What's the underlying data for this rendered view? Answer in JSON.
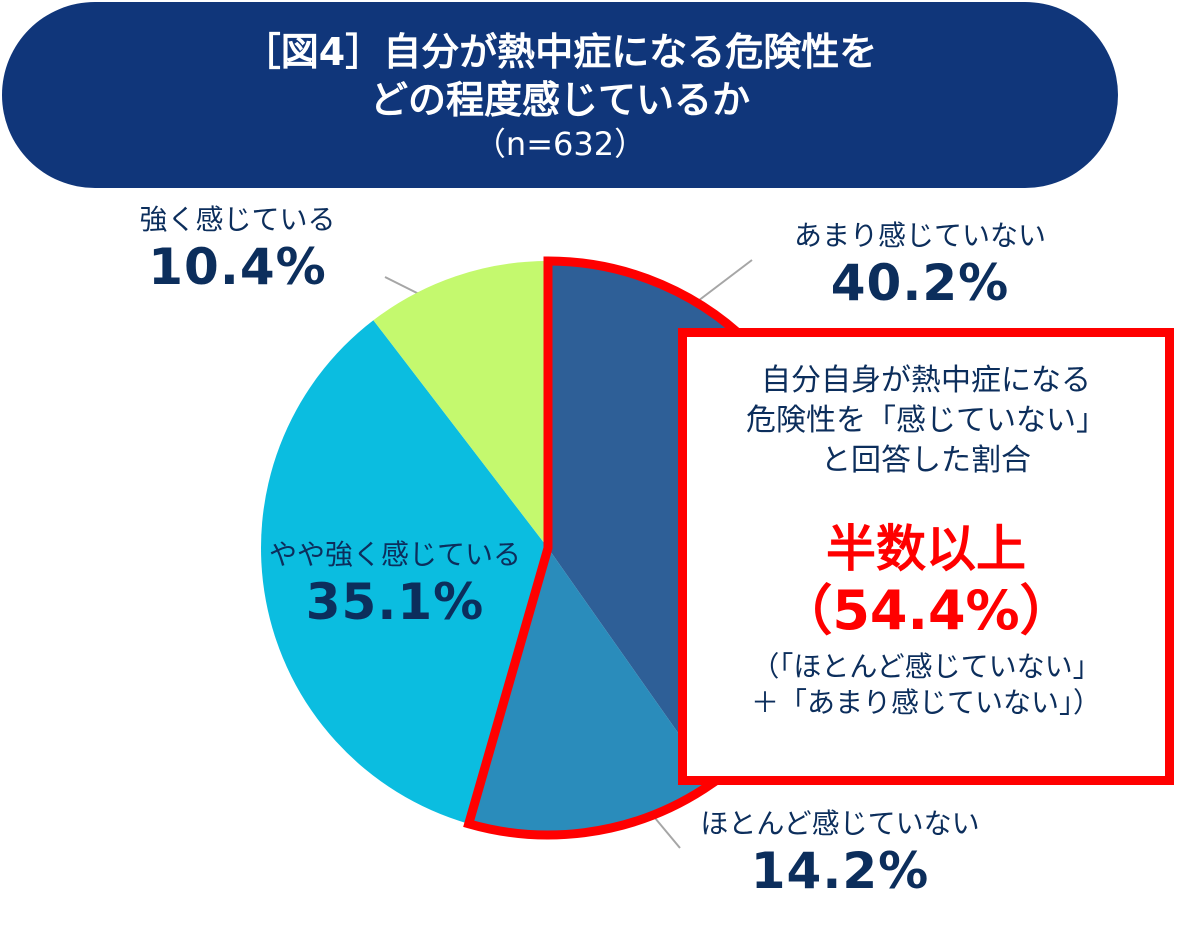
{
  "title": {
    "line1": "［図4］自分が熱中症になる危険性を",
    "line2": "どの程度感じているか",
    "line3": "（n=632）"
  },
  "chart_data": {
    "type": "pie",
    "slices": [
      {
        "label": "あまり感じていない",
        "value": 40.2,
        "value_label": "40.2%",
        "color": "#2e5f97"
      },
      {
        "label": "ほとんど感じていない",
        "value": 14.2,
        "value_label": "14.2%",
        "color": "#2a8cbb"
      },
      {
        "label": "やや強く感じている",
        "value": 35.1,
        "value_label": "35.1%",
        "color": "#0bbde0"
      },
      {
        "label": "強く感じている",
        "value": 10.4,
        "value_label": "10.4%",
        "color": "#c4f96e"
      }
    ],
    "start": "12 o'clock",
    "direction": "clockwise"
  },
  "callout": {
    "line1": "自分自身が熱中症になる",
    "line2": "危険性を「感じていない」",
    "line3": "と回答した割合",
    "headline": "半数以上",
    "value": "（54.4%）",
    "note1": "（「ほとんど感じていない」",
    "note2": "＋「あまり感じていない」）"
  },
  "colors": {
    "banner": "#10367a",
    "highlight": "#ff0000",
    "text": "#0c2e5c"
  }
}
